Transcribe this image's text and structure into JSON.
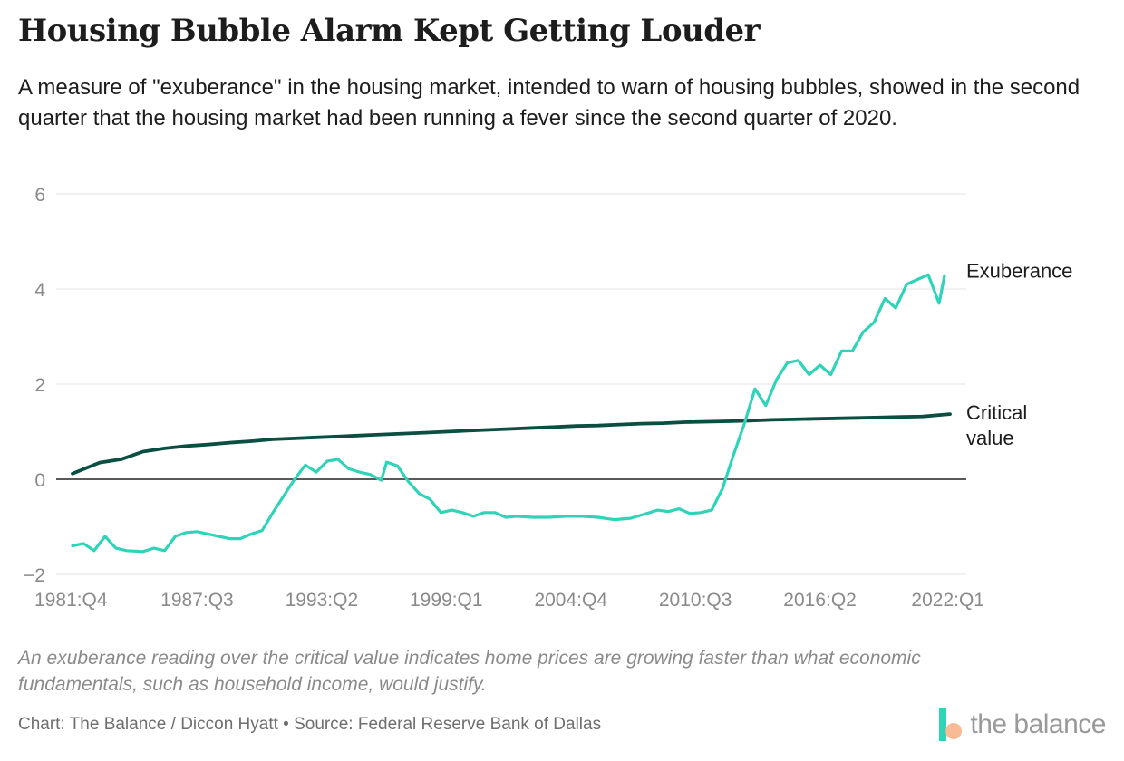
{
  "header": {
    "title": "Housing Bubble Alarm Kept Getting Louder",
    "subtitle": "A measure of \"exuberance\" in the housing market, intended to warn of housing bubbles, showed in the second quarter that the housing market had been running a fever since the second quarter of 2020."
  },
  "footer": {
    "note": "An exuberance reading over the critical value indicates home prices are growing faster than what economic fundamentals, such as household income, would justify.",
    "credit": "Chart: The Balance / Diccon Hyatt • Source: Federal Reserve Bank of Dallas",
    "brand": "the balance"
  },
  "colors": {
    "exuberance": "#2fd3b8",
    "critical": "#0b4f43",
    "grid": "#e3e3e3",
    "zero_line": "#222222",
    "tick_text": "#8a8a8a",
    "brand_teal": "#2fd3b8",
    "brand_peach": "#f6b48b"
  },
  "chart_data": {
    "type": "line",
    "title": "",
    "xlabel": "",
    "ylabel": "",
    "x_start": "1981:Q4",
    "x_end": "2022:Q2",
    "xticks": [
      "1981:Q4",
      "1987:Q3",
      "1993:Q2",
      "1999:Q1",
      "2004:Q4",
      "2010:Q3",
      "2016:Q2",
      "2022:Q1"
    ],
    "yticks": [
      -2,
      0,
      2,
      4,
      6
    ],
    "ylim": [
      -2,
      6
    ],
    "grid": true,
    "legend": "direct labels at right",
    "series": [
      {
        "name": "Exuberance",
        "points": [
          [
            "1981:Q4",
            -1.4
          ],
          [
            "1982:Q2",
            -1.35
          ],
          [
            "1982:Q4",
            -1.5
          ],
          [
            "1983:Q2",
            -1.2
          ],
          [
            "1983:Q4",
            -1.45
          ],
          [
            "1984:Q2",
            -1.5
          ],
          [
            "1985:Q1",
            -1.52
          ],
          [
            "1985:Q3",
            -1.45
          ],
          [
            "1986:Q1",
            -1.5
          ],
          [
            "1986:Q3",
            -1.2
          ],
          [
            "1987:Q1",
            -1.12
          ],
          [
            "1987:Q3",
            -1.1
          ],
          [
            "1988:Q1",
            -1.15
          ],
          [
            "1988:Q3",
            -1.2
          ],
          [
            "1989:Q1",
            -1.25
          ],
          [
            "1989:Q3",
            -1.25
          ],
          [
            "1990:Q1",
            -1.15
          ],
          [
            "1990:Q3",
            -1.08
          ],
          [
            "1991:Q1",
            -0.7
          ],
          [
            "1991:Q3",
            -0.35
          ],
          [
            "1992:Q1",
            0.0
          ],
          [
            "1992:Q3",
            0.3
          ],
          [
            "1993:Q1",
            0.15
          ],
          [
            "1993:Q3",
            0.38
          ],
          [
            "1994:Q1",
            0.42
          ],
          [
            "1994:Q3",
            0.22
          ],
          [
            "1995:Q1",
            0.15
          ],
          [
            "1995:Q3",
            0.1
          ],
          [
            "1996:Q1",
            -0.02
          ],
          [
            "1996:Q2",
            0.36
          ],
          [
            "1996:Q4",
            0.28
          ],
          [
            "1997:Q2",
            -0.05
          ],
          [
            "1997:Q4",
            -0.3
          ],
          [
            "1998:Q2",
            -0.42
          ],
          [
            "1998:Q4",
            -0.7
          ],
          [
            "1999:Q2",
            -0.65
          ],
          [
            "1999:Q4",
            -0.7
          ],
          [
            "2000:Q2",
            -0.78
          ],
          [
            "2000:Q4",
            -0.7
          ],
          [
            "2001:Q2",
            -0.7
          ],
          [
            "2001:Q4",
            -0.8
          ],
          [
            "2002:Q2",
            -0.78
          ],
          [
            "2003:Q1",
            -0.8
          ],
          [
            "2003:Q4",
            -0.8
          ],
          [
            "2004:Q3",
            -0.78
          ],
          [
            "2005:Q2",
            -0.78
          ],
          [
            "2006:Q1",
            -0.8
          ],
          [
            "2006:Q4",
            -0.85
          ],
          [
            "2007:Q3",
            -0.82
          ],
          [
            "2008:Q2",
            -0.72
          ],
          [
            "2008:Q4",
            -0.65
          ],
          [
            "2009:Q2",
            -0.68
          ],
          [
            "2009:Q4",
            -0.62
          ],
          [
            "2010:Q2",
            -0.72
          ],
          [
            "2010:Q4",
            -0.7
          ],
          [
            "2011:Q2",
            -0.65
          ],
          [
            "2011:Q4",
            -0.2
          ],
          [
            "2012:Q2",
            0.5
          ],
          [
            "2012:Q4",
            1.15
          ],
          [
            "2013:Q2",
            1.9
          ],
          [
            "2013:Q4",
            1.55
          ],
          [
            "2014:Q2",
            2.1
          ],
          [
            "2014:Q4",
            2.45
          ],
          [
            "2015:Q2",
            2.5
          ],
          [
            "2015:Q4",
            2.2
          ],
          [
            "2016:Q2",
            2.4
          ],
          [
            "2016:Q4",
            2.2
          ],
          [
            "2017:Q2",
            2.7
          ],
          [
            "2017:Q4",
            2.7
          ],
          [
            "2018:Q2",
            3.1
          ],
          [
            "2018:Q4",
            3.3
          ],
          [
            "2019:Q2",
            3.8
          ],
          [
            "2019:Q4",
            3.6
          ],
          [
            "2020:Q2",
            4.1
          ],
          [
            "2020:Q4",
            4.2
          ],
          [
            "2021:Q2",
            4.3
          ],
          [
            "2021:Q4",
            3.7
          ],
          [
            "2022:Q1",
            4.28
          ]
        ]
      },
      {
        "name": "Critical value",
        "points": [
          [
            "1981:Q4",
            0.12
          ],
          [
            "1983:Q1",
            0.35
          ],
          [
            "1984:Q1",
            0.42
          ],
          [
            "1985:Q1",
            0.58
          ],
          [
            "1986:Q1",
            0.65
          ],
          [
            "1987:Q1",
            0.7
          ],
          [
            "1988:Q1",
            0.73
          ],
          [
            "1989:Q1",
            0.77
          ],
          [
            "1990:Q1",
            0.8
          ],
          [
            "1991:Q1",
            0.84
          ],
          [
            "1992:Q1",
            0.86
          ],
          [
            "1993:Q1",
            0.88
          ],
          [
            "1994:Q1",
            0.9
          ],
          [
            "1995:Q1",
            0.92
          ],
          [
            "1996:Q1",
            0.94
          ],
          [
            "1997:Q1",
            0.96
          ],
          [
            "1998:Q1",
            0.98
          ],
          [
            "1999:Q1",
            1.0
          ],
          [
            "2000:Q1",
            1.02
          ],
          [
            "2001:Q1",
            1.04
          ],
          [
            "2002:Q1",
            1.06
          ],
          [
            "2003:Q1",
            1.08
          ],
          [
            "2004:Q1",
            1.1
          ],
          [
            "2005:Q1",
            1.12
          ],
          [
            "2006:Q1",
            1.13
          ],
          [
            "2007:Q1",
            1.15
          ],
          [
            "2008:Q1",
            1.17
          ],
          [
            "2009:Q1",
            1.18
          ],
          [
            "2010:Q1",
            1.2
          ],
          [
            "2011:Q1",
            1.21
          ],
          [
            "2012:Q1",
            1.22
          ],
          [
            "2013:Q1",
            1.23
          ],
          [
            "2014:Q1",
            1.25
          ],
          [
            "2015:Q1",
            1.26
          ],
          [
            "2016:Q1",
            1.27
          ],
          [
            "2017:Q1",
            1.28
          ],
          [
            "2018:Q1",
            1.29
          ],
          [
            "2019:Q1",
            1.3
          ],
          [
            "2020:Q1",
            1.31
          ],
          [
            "2021:Q1",
            1.32
          ],
          [
            "2022:Q1",
            1.36
          ],
          [
            "2022:Q2",
            1.37
          ]
        ]
      }
    ],
    "series_labels": {
      "exuberance": "Exuberance",
      "critical_line1": "Critical",
      "critical_line2": "value"
    }
  }
}
